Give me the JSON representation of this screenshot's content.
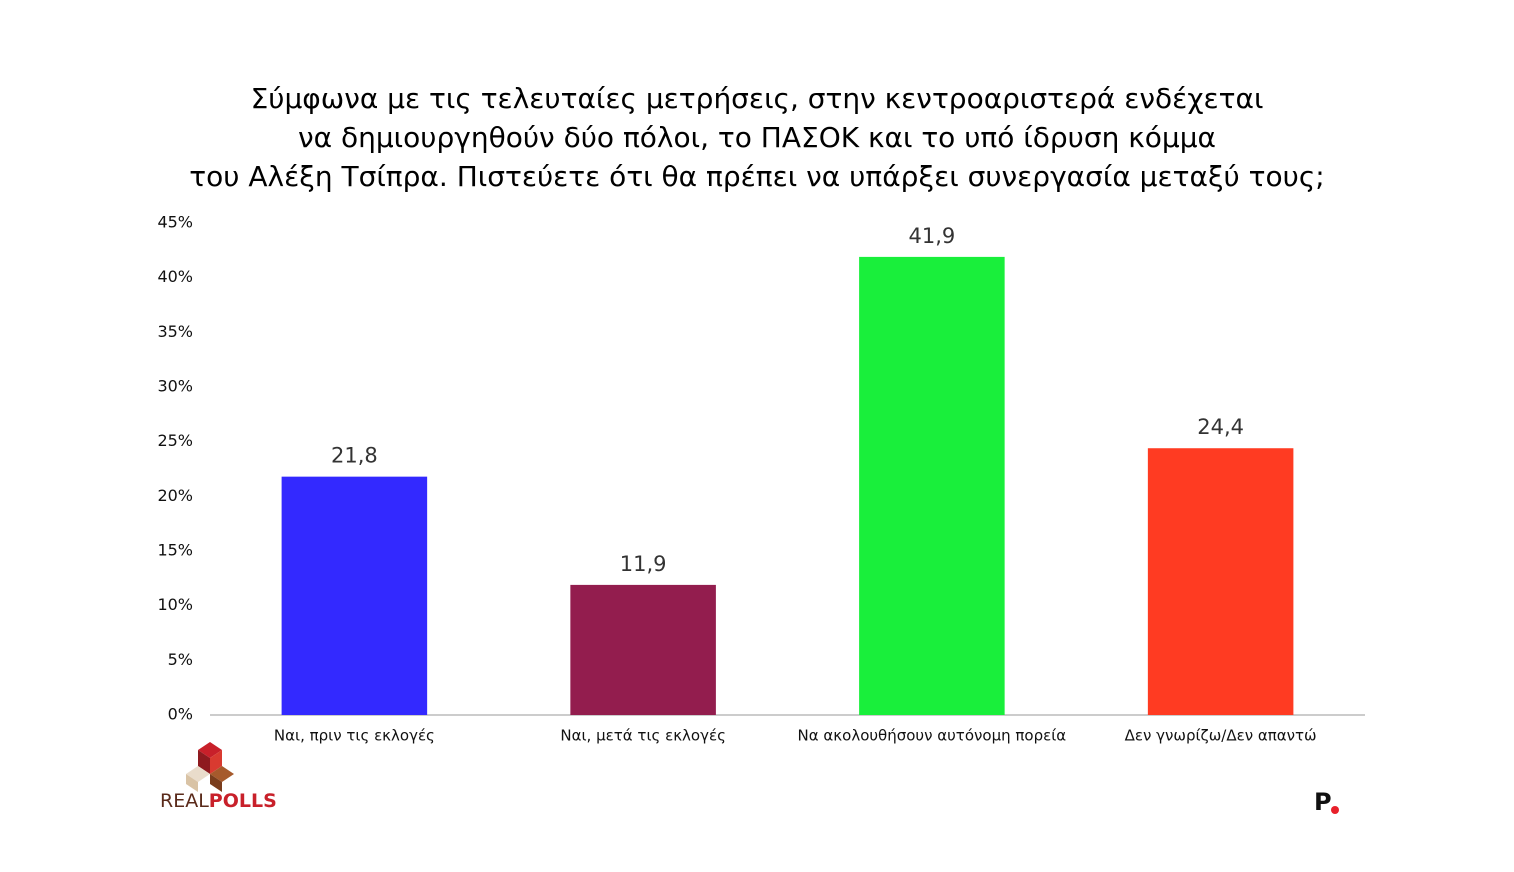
{
  "chart_data": {
    "type": "bar",
    "title": [
      "Σύμφωνα με τις τελευταίες μετρήσεις, στην κεντροαριστερά ενδέχεται",
      "να δημιουργηθούν δύο πόλοι, το ΠΑΣΟΚ και το υπό ίδρυση κόμμα",
      "του Αλέξη Τσίπρα. Πιστεύετε ότι θα πρέπει να υπάρξει συνεργασία μεταξύ τους;"
    ],
    "categories": [
      "Ναι, πριν τις εκλογές",
      "Ναι, μετά τις εκλογές",
      "Να ακολουθήσουν  αυτόνομη πορεία",
      "Δεν γνωρίζω/Δεν απαντώ"
    ],
    "values": [
      21.8,
      11.9,
      41.9,
      24.4
    ],
    "value_labels": [
      "21,8",
      "11,9",
      "41,9",
      "24,4"
    ],
    "colors": [
      "#3329ff",
      "#931d4e",
      "#19ef3b",
      "#ff3b22"
    ],
    "ylim": [
      0,
      45
    ],
    "yticks": [
      {
        "value": 0,
        "label": "0%"
      },
      {
        "value": 5,
        "label": "5%"
      },
      {
        "value": 10,
        "label": "10%"
      },
      {
        "value": 15,
        "label": "15%"
      },
      {
        "value": 20,
        "label": "20%"
      },
      {
        "value": 25,
        "label": "25%"
      },
      {
        "value": 30,
        "label": "30%"
      },
      {
        "value": 35,
        "label": "35%"
      },
      {
        "value": 40,
        "label": "40%"
      },
      {
        "value": 45,
        "label": "45%"
      }
    ],
    "grid": false
  },
  "logo": [
    "REAL",
    "POLLS"
  ],
  "publisher_logo": "P"
}
